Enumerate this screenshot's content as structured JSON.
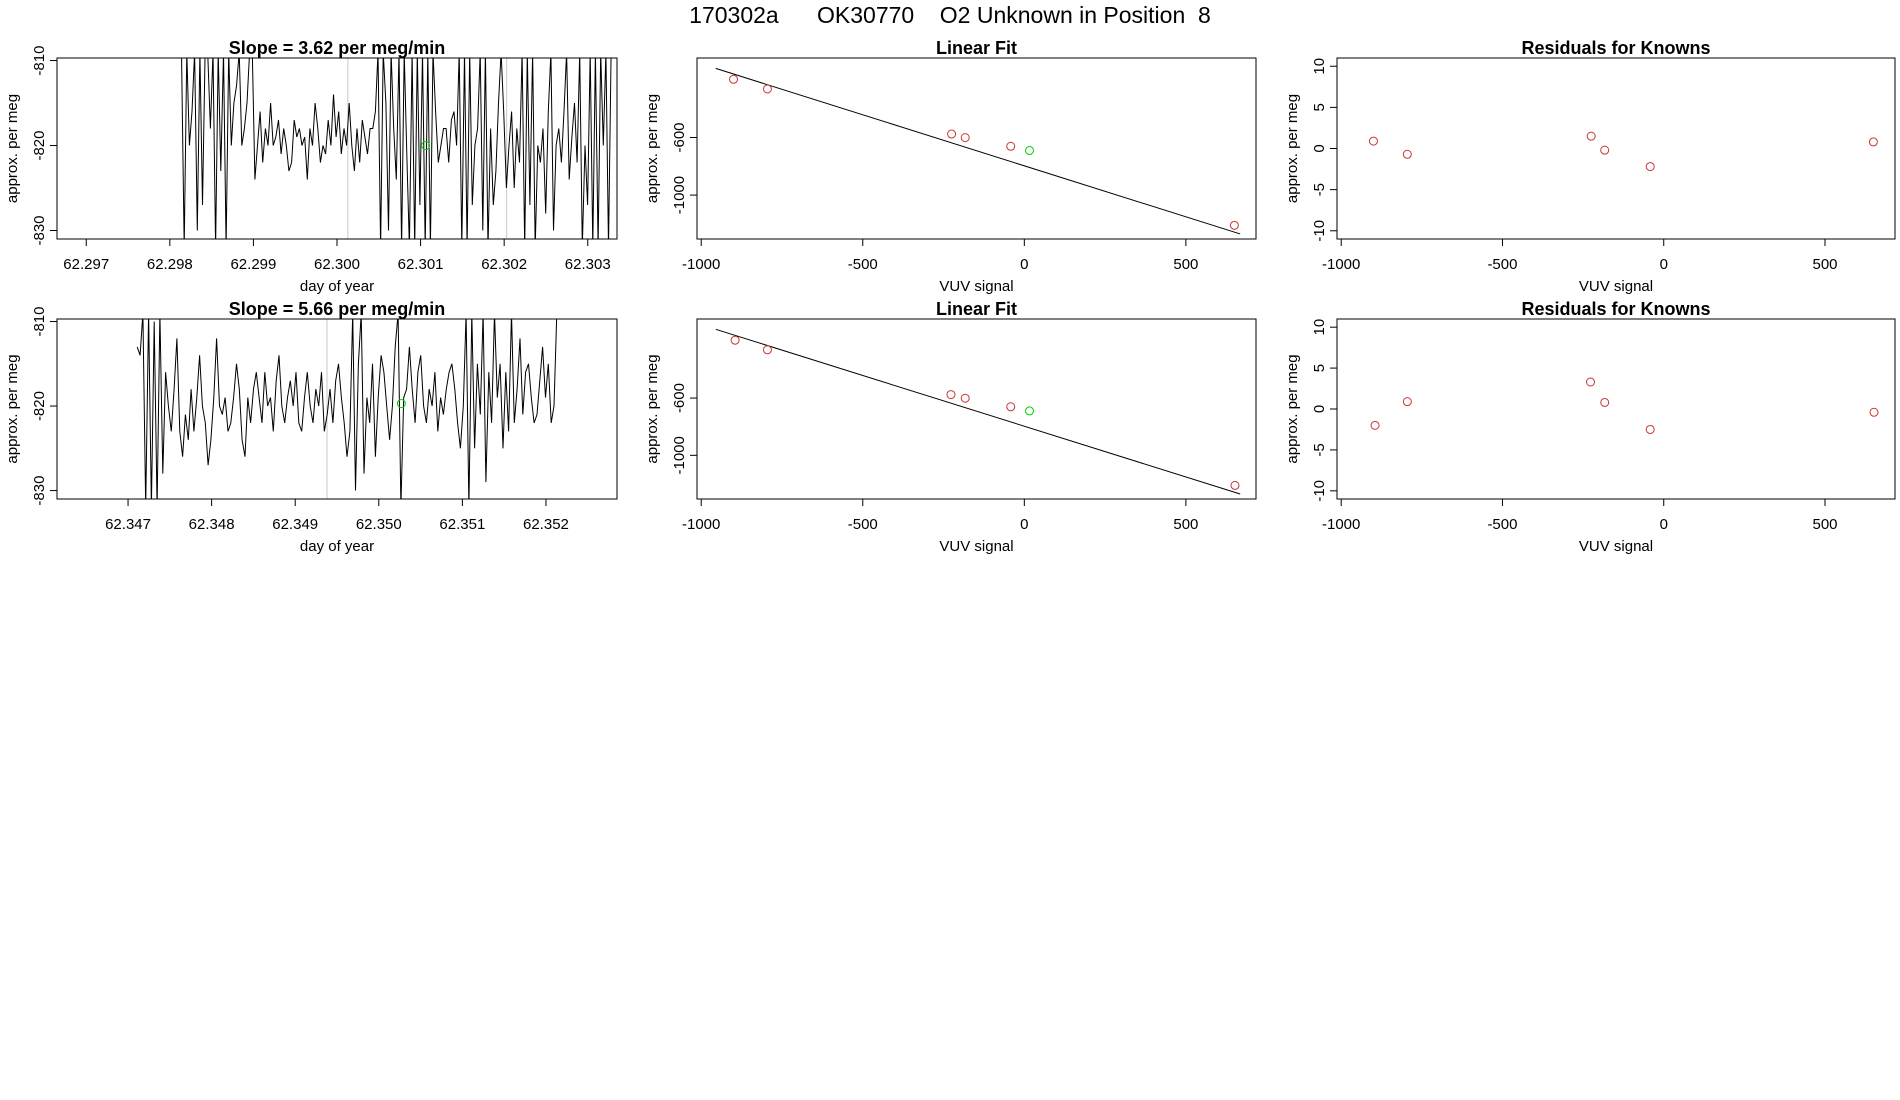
{
  "header": {
    "title": "170302a      OK30770    O2 Unknown in Position  8"
  },
  "chart_data": [
    {
      "id": "ts1",
      "type": "line",
      "title": "Slope =  3.62  per meg/min",
      "xlabel": "day of year",
      "ylabel": "approx. per meg",
      "xlim": [
        62.29665,
        62.30335
      ],
      "ylim": [
        -831,
        -809.7
      ],
      "xticks": [
        "62.297",
        "62.298",
        "62.299",
        "62.300",
        "62.301",
        "62.302",
        "62.303"
      ],
      "yticks": [
        "-810",
        "-820",
        "-830"
      ],
      "vlines": [
        62.30013,
        62.30203
      ],
      "highlight": {
        "x": 62.30106,
        "y": -820.0,
        "color": "#00cc00"
      },
      "series": [
        {
          "name": "trace",
          "x_start": 62.29814,
          "x_end": 62.30328,
          "values": [
            -809,
            -832,
            -809,
            -820,
            -816,
            -809,
            -830,
            -809,
            -827,
            -809,
            -809,
            -818,
            -809,
            -832,
            -809,
            -823,
            -809,
            -832,
            -809,
            -820,
            -815,
            -813,
            -809,
            -820,
            -818,
            -815,
            -809,
            -809,
            -824,
            -820,
            -816,
            -822,
            -818,
            -820,
            -815,
            -820,
            -819,
            -817,
            -821,
            -818,
            -820,
            -823,
            -822,
            -817,
            -819,
            -818,
            -820,
            -819,
            -824,
            -818,
            -820,
            -815,
            -818,
            -822,
            -820,
            -821,
            -817,
            -820,
            -814,
            -819,
            -816,
            -821,
            -818,
            -820,
            -815,
            -820,
            -823,
            -818,
            -822,
            -817,
            -819,
            -821,
            -818,
            -818,
            -816,
            -809,
            -832,
            -809,
            -815,
            -830,
            -809,
            -818,
            -824,
            -809,
            -832,
            -809,
            -821,
            -832,
            -809,
            -832,
            -809,
            -827,
            -809,
            -832,
            -809,
            -832,
            -809,
            -816,
            -822,
            -820,
            -818,
            -818,
            -822,
            -817,
            -816,
            -820,
            -809,
            -832,
            -809,
            -832,
            -809,
            -827,
            -820,
            -818,
            -809,
            -830,
            -809,
            -832,
            -818,
            -827,
            -823,
            -815,
            -809,
            -816,
            -825,
            -820,
            -816,
            -825,
            -818,
            -822,
            -809,
            -832,
            -809,
            -827,
            -809,
            -832,
            -820,
            -822,
            -818,
            -828,
            -816,
            -809,
            -830,
            -820,
            -818,
            -822,
            -816,
            -809,
            -824,
            -819,
            -815,
            -822,
            -809,
            -832,
            -820,
            -827,
            -809,
            -832,
            -809,
            -832,
            -809,
            -820,
            -809,
            -832,
            -809
          ]
        }
      ]
    },
    {
      "id": "fit1",
      "type": "scatter",
      "title": "Linear Fit",
      "xlabel": "VUV signal",
      "ylabel": "approx. per meg",
      "xlim": [
        -1013,
        717
      ],
      "ylim": [
        -1305,
        -48
      ],
      "xticks": [
        -1000,
        -500,
        0,
        500
      ],
      "yticks": [
        -600,
        -1000
      ],
      "fit_line": {
        "x": [
          -955,
          668
        ],
        "y": [
          -120,
          -1270
        ]
      },
      "knowns": {
        "color": "#cc3333",
        "x": [
          -900,
          -795,
          -225,
          -183,
          -42,
          650
        ],
        "y": [
          -196,
          -263,
          -576,
          -601,
          -661,
          -1210
        ]
      },
      "unknown": {
        "color": "#00cc00",
        "x": [
          16
        ],
        "y": [
          -690
        ]
      }
    },
    {
      "id": "res1",
      "type": "scatter",
      "title": "Residuals for Knowns",
      "xlabel": "VUV signal",
      "ylabel": "approx. per meg",
      "xlim": [
        -1013,
        717
      ],
      "ylim": [
        -11,
        11
      ],
      "xticks": [
        -1000,
        -500,
        0,
        500
      ],
      "yticks": [
        10,
        5,
        0,
        -5,
        -10
      ],
      "points": {
        "color": "#cc3333",
        "x": [
          -900,
          -795,
          -225,
          -183,
          -42,
          650
        ],
        "y": [
          0.9,
          -0.7,
          1.5,
          -0.2,
          -2.2,
          0.8
        ]
      }
    },
    {
      "id": "ts2",
      "type": "line",
      "title": "Slope =  5.66  per meg/min",
      "xlabel": "day of year",
      "ylabel": "approx. per meg",
      "xlim": [
        62.34615,
        62.35285
      ],
      "ylim": [
        -831,
        -809.7
      ],
      "xticks": [
        "62.347",
        "62.348",
        "62.349",
        "62.350",
        "62.351",
        "62.352"
      ],
      "yticks": [
        "-810",
        "-820",
        "-830"
      ],
      "vlines": [
        62.34938
      ],
      "highlight": {
        "x": 62.35027,
        "y": -819.7,
        "color": "#00cc00"
      },
      "series": [
        {
          "name": "trace",
          "x_start": 62.34711,
          "x_end": 62.35213,
          "values": [
            -813,
            -814,
            -809,
            -832,
            -809,
            -832,
            -810,
            -832,
            -809,
            -828,
            -816,
            -820,
            -823,
            -818,
            -812,
            -823,
            -826,
            -821,
            -824,
            -818,
            -823,
            -819,
            -814,
            -820,
            -822,
            -827,
            -824,
            -819,
            -812,
            -820,
            -821,
            -819,
            -823,
            -822,
            -819,
            -815,
            -818,
            -824,
            -826,
            -819,
            -822,
            -818,
            -816,
            -819,
            -822,
            -816,
            -820,
            -819,
            -823,
            -817,
            -814,
            -820,
            -822,
            -819,
            -817,
            -820,
            -816,
            -822,
            -823,
            -819,
            -816,
            -820,
            -822,
            -818,
            -820,
            -816,
            -823,
            -821,
            -818,
            -822,
            -817,
            -815,
            -819,
            -822,
            -826,
            -823,
            -809,
            -830,
            -815,
            -809,
            -828,
            -819,
            -822,
            -815,
            -826,
            -819,
            -814,
            -816,
            -820,
            -824,
            -820,
            -813,
            -809,
            -832,
            -819,
            -818,
            -813,
            -818,
            -822,
            -816,
            -814,
            -820,
            -822,
            -818,
            -820,
            -816,
            -823,
            -819,
            -821,
            -818,
            -816,
            -815,
            -818,
            -822,
            -825,
            -820,
            -809,
            -832,
            -809,
            -825,
            -815,
            -821,
            -809,
            -829,
            -816,
            -822,
            -809,
            -819,
            -815,
            -825,
            -816,
            -823,
            -809,
            -822,
            -818,
            -812,
            -821,
            -816,
            -815,
            -819,
            -822,
            -821,
            -817,
            -813,
            -819,
            -815,
            -822,
            -820,
            -809
          ]
        }
      ]
    },
    {
      "id": "fit2",
      "type": "scatter",
      "title": "Linear Fit",
      "xlabel": "VUV signal",
      "ylabel": "approx. per meg",
      "xlim": [
        -1013,
        717
      ],
      "ylim": [
        -1305,
        -48
      ],
      "xticks": [
        -1000,
        -500,
        0,
        500
      ],
      "yticks": [
        -600,
        -1000
      ],
      "fit_line": {
        "x": [
          -955,
          668
        ],
        "y": [
          -120,
          -1270
        ]
      },
      "knowns": {
        "color": "#cc3333",
        "x": [
          -895,
          -795,
          -227,
          -183,
          -42,
          652
        ],
        "y": [
          -196,
          -263,
          -576,
          -601,
          -661,
          -1210
        ]
      },
      "unknown": {
        "color": "#00cc00",
        "x": [
          16
        ],
        "y": [
          -690
        ]
      }
    },
    {
      "id": "res2",
      "type": "scatter",
      "title": "Residuals for Knowns",
      "xlabel": "VUV signal",
      "ylabel": "approx. per meg",
      "xlim": [
        -1013,
        717
      ],
      "ylim": [
        -11,
        11
      ],
      "xticks": [
        -1000,
        -500,
        0,
        500
      ],
      "yticks": [
        10,
        5,
        0,
        -5,
        -10
      ],
      "points": {
        "color": "#cc3333",
        "x": [
          -895,
          -795,
          -227,
          -183,
          -42,
          652
        ],
        "y": [
          -2.0,
          0.9,
          3.3,
          0.8,
          -2.5,
          -0.4
        ]
      }
    }
  ]
}
